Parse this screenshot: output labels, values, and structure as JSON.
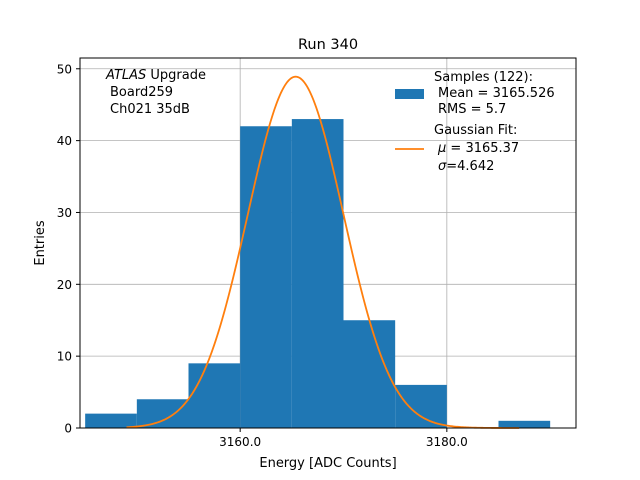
{
  "chart_data": {
    "type": "bar",
    "title": "Run 340",
    "xlabel": "Energy [ADC Counts]",
    "ylabel": "Entries",
    "xlim": [
      3144.5,
      3192.5
    ],
    "ylim": [
      0,
      51.5
    ],
    "grid": true,
    "x_ticks": [
      {
        "value": 3160,
        "label": "3160.0"
      },
      {
        "value": 3180,
        "label": "3180.0"
      }
    ],
    "y_ticks": [
      {
        "value": 0,
        "label": "0"
      },
      {
        "value": 10,
        "label": "10"
      },
      {
        "value": 20,
        "label": "20"
      },
      {
        "value": 30,
        "label": "30"
      },
      {
        "value": 40,
        "label": "40"
      },
      {
        "value": 50,
        "label": "50"
      }
    ],
    "bins": [
      {
        "x0": 3145,
        "x1": 3150,
        "count": 2
      },
      {
        "x0": 3150,
        "x1": 3155,
        "count": 4
      },
      {
        "x0": 3155,
        "x1": 3160,
        "count": 9
      },
      {
        "x0": 3160,
        "x1": 3165,
        "count": 42
      },
      {
        "x0": 3165,
        "x1": 3170,
        "count": 43
      },
      {
        "x0": 3170,
        "x1": 3175,
        "count": 15
      },
      {
        "x0": 3175,
        "x1": 3180,
        "count": 6
      },
      {
        "x0": 3180,
        "x1": 3185,
        "count": 0
      },
      {
        "x0": 3185,
        "x1": 3190,
        "count": 1
      }
    ],
    "fit": {
      "type": "gaussian",
      "mu": 3165.37,
      "sigma": 4.642,
      "amplitude": 48.9,
      "x_range": [
        3149,
        3187
      ]
    },
    "annotation": {
      "line1_italic": "ATLAS",
      "line1_rest": " Upgrade",
      "line2": "Board259",
      "line3": "Ch021 35dB"
    },
    "legend": {
      "placement": "top-right",
      "samples_label": "Samples (122):",
      "samples_mean": "Mean = 3165.526",
      "samples_rms": "RMS = 5.7",
      "fit_label": "Gaussian Fit:",
      "fit_mu_symbol": "μ",
      "fit_mu_value": " = 3165.37",
      "fit_sigma_symbol": "σ",
      "fit_sigma_value": "=4.642"
    },
    "colors": {
      "bars": "#1f77b4",
      "fit": "#ff7f0e",
      "grid": "#b0b0b0"
    }
  }
}
